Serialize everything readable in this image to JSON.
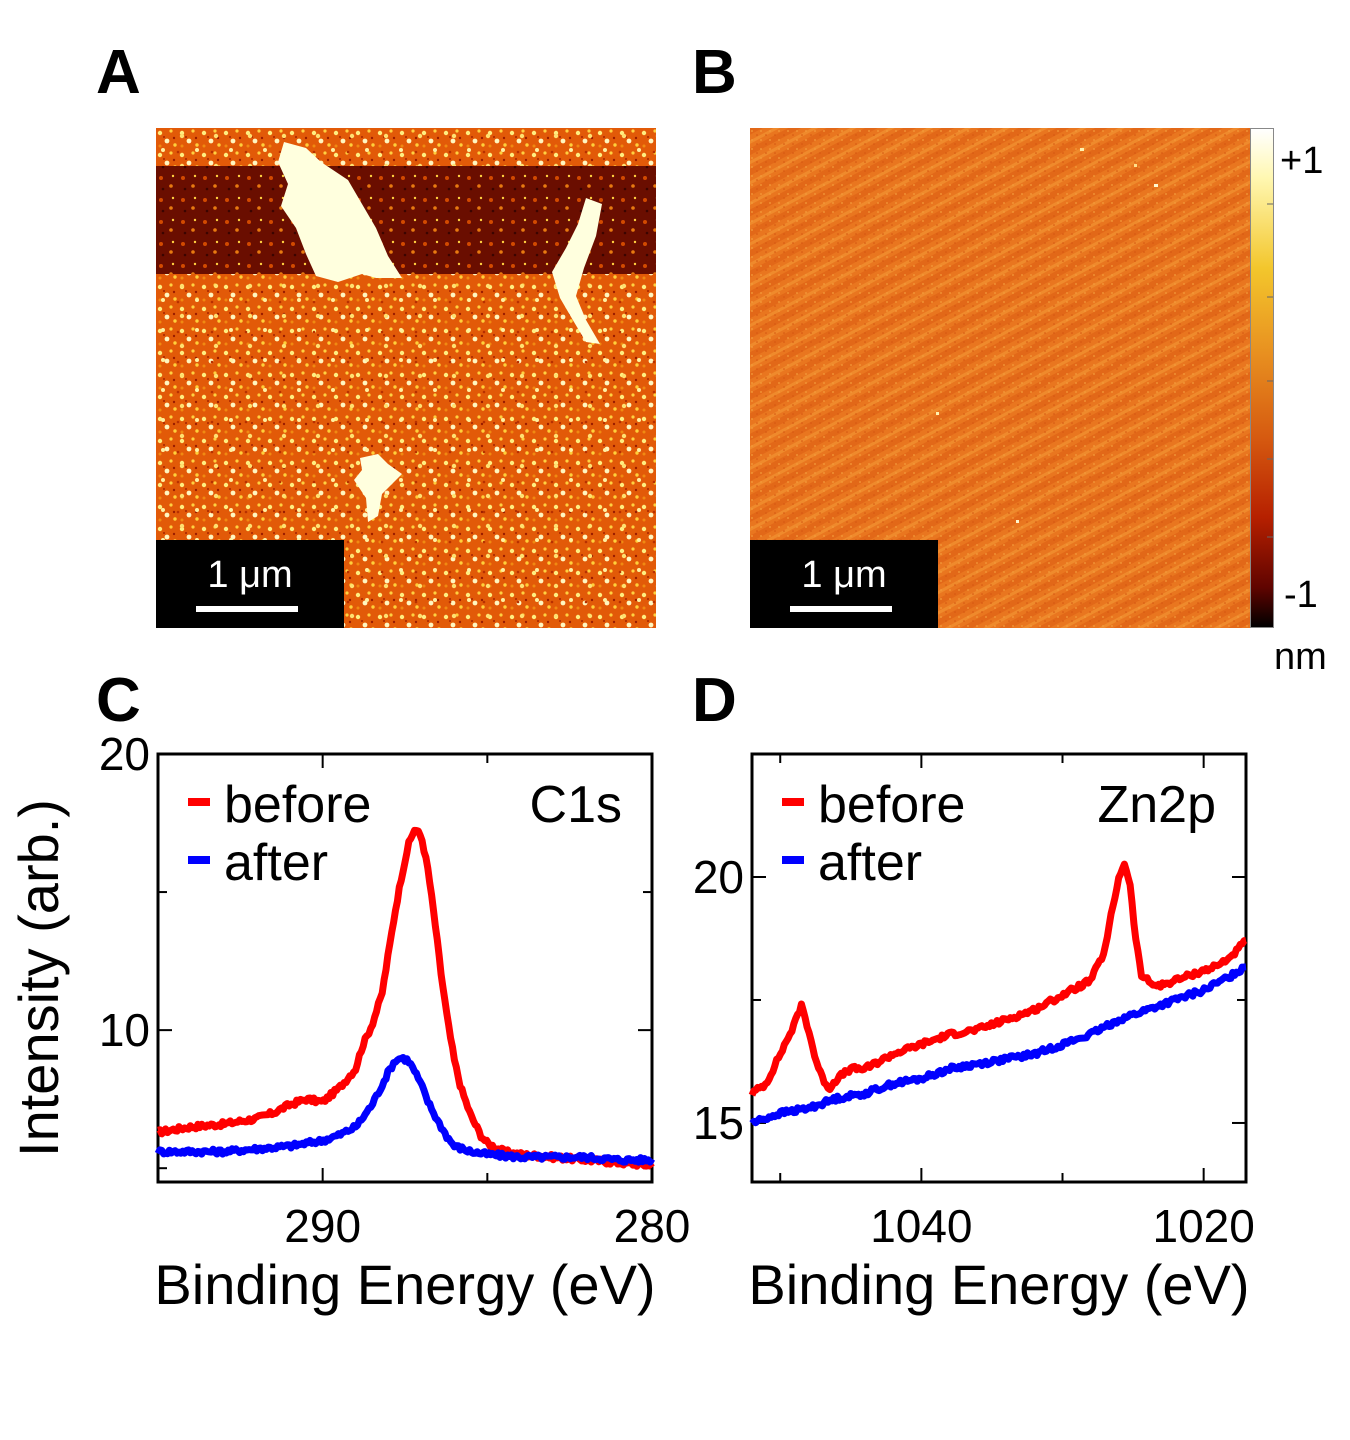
{
  "panels": {
    "a": {
      "letter": "A",
      "scale_bar": "1 μm"
    },
    "b": {
      "letter": "B",
      "scale_bar": "1 μm",
      "colorbar": {
        "max_label": "+1",
        "min_label": "-1",
        "unit": "nm"
      }
    },
    "c": {
      "letter": "C"
    },
    "d": {
      "letter": "D"
    }
  },
  "colors": {
    "before": "#ff0000",
    "after": "#0000ff"
  },
  "chart_data": [
    {
      "type": "line",
      "id": "C",
      "annotation": "C1s",
      "xlabel": "Binding Energy (eV)",
      "ylabel": "Intensity (arb.)",
      "xlim": [
        295,
        280
      ],
      "ylim": [
        4.5,
        20
      ],
      "xticks": [
        290,
        280
      ],
      "yticks": [
        10,
        20
      ],
      "legend": "top-left",
      "series": [
        {
          "name": "before",
          "color": "#ff0000",
          "x": [
            295,
            294,
            293,
            292,
            291.5,
            291,
            290.5,
            290,
            289.5,
            289,
            288.8,
            288.5,
            288.2,
            288,
            287.8,
            287.6,
            287.4,
            287.2,
            287,
            286.8,
            286.6,
            286.4,
            286.2,
            286,
            285.8,
            285.5,
            285.2,
            285,
            284.5,
            284,
            283,
            282,
            281,
            280
          ],
          "values": [
            6.3,
            6.5,
            6.6,
            6.8,
            7.0,
            7.3,
            7.5,
            7.4,
            7.9,
            8.6,
            9.4,
            10.2,
            11.3,
            12.8,
            14.3,
            15.6,
            16.7,
            17.3,
            17.0,
            15.8,
            14.0,
            12.0,
            10.3,
            8.9,
            7.9,
            6.9,
            6.2,
            5.9,
            5.6,
            5.5,
            5.4,
            5.3,
            5.2,
            5.1
          ]
        },
        {
          "name": "after",
          "color": "#0000ff",
          "x": [
            295,
            294,
            293,
            292,
            291,
            290.5,
            290,
            289.5,
            289,
            288.8,
            288.5,
            288.2,
            288,
            287.8,
            287.6,
            287.4,
            287.2,
            287,
            286.8,
            286.5,
            286.2,
            286,
            285.5,
            285,
            284,
            283,
            282,
            281,
            280
          ],
          "values": [
            5.6,
            5.6,
            5.6,
            5.7,
            5.8,
            5.9,
            6.0,
            6.2,
            6.5,
            6.8,
            7.3,
            8.0,
            8.5,
            8.9,
            9.0,
            8.9,
            8.5,
            8.0,
            7.4,
            6.7,
            6.1,
            5.8,
            5.6,
            5.5,
            5.4,
            5.4,
            5.4,
            5.3,
            5.3
          ]
        }
      ]
    },
    {
      "type": "line",
      "id": "D",
      "annotation": "Zn2p",
      "xlabel": "Binding Energy (eV)",
      "ylabel": "",
      "xlim": [
        1052,
        1017
      ],
      "ylim": [
        13.8,
        22.5
      ],
      "xticks": [
        1040,
        1020
      ],
      "yticks": [
        15,
        20
      ],
      "legend": "top-left",
      "series": [
        {
          "name": "before",
          "color": "#ff0000",
          "x": [
            1052,
            1051,
            1050,
            1049,
            1048.5,
            1048,
            1047.5,
            1047,
            1046.5,
            1046,
            1045,
            1044,
            1042,
            1040,
            1038,
            1036,
            1034,
            1032,
            1030,
            1028,
            1027,
            1026.5,
            1026,
            1025.6,
            1025.2,
            1024.8,
            1024.4,
            1024,
            1023.5,
            1023,
            1022,
            1021,
            1020,
            1019,
            1018,
            1017
          ],
          "values": [
            15.6,
            15.8,
            16.4,
            17.0,
            17.4,
            16.9,
            16.3,
            15.9,
            15.7,
            15.9,
            16.1,
            16.1,
            16.4,
            16.6,
            16.8,
            16.9,
            17.1,
            17.3,
            17.6,
            17.9,
            18.5,
            19.3,
            20.0,
            20.3,
            19.8,
            18.7,
            18.0,
            17.9,
            17.8,
            17.8,
            17.9,
            18.0,
            18.1,
            18.2,
            18.4,
            18.7
          ]
        },
        {
          "name": "after",
          "color": "#0000ff",
          "x": [
            1052,
            1050,
            1048,
            1046,
            1044,
            1042,
            1040,
            1038,
            1036,
            1034,
            1032,
            1030,
            1028,
            1026,
            1024,
            1022,
            1020,
            1018,
            1017
          ],
          "values": [
            15.0,
            15.2,
            15.3,
            15.5,
            15.6,
            15.8,
            15.9,
            16.1,
            16.2,
            16.3,
            16.4,
            16.6,
            16.8,
            17.1,
            17.3,
            17.5,
            17.7,
            18.0,
            18.2
          ]
        }
      ]
    }
  ]
}
